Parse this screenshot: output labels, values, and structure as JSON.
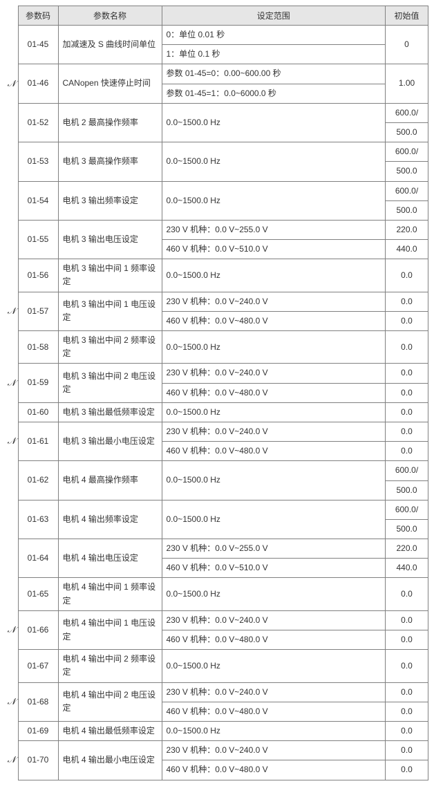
{
  "table": {
    "headers": {
      "code": "参数码",
      "name": "参数名称",
      "range": "设定范围",
      "init": "初始值"
    },
    "flag_glyph": "✔",
    "rows": [
      {
        "flag": false,
        "code": "01-45",
        "name": "加减速及 S 曲线时间单位",
        "range": "0：单位 0.01 秒\n1：单位 0.1 秒",
        "init": "0"
      },
      {
        "flag": true,
        "code": "01-46",
        "name": "CANopen 快速停止时间",
        "range": "参数 01-45=0：0.00~600.00 秒\n参数 01-45=1：0.0~6000.0 秒",
        "init": "1.00"
      },
      {
        "flag": false,
        "code": "01-52",
        "name": "电机 2 最高操作频率",
        "range": "0.0~1500.0 Hz",
        "init": "600.0/\n500.0"
      },
      {
        "flag": false,
        "code": "01-53",
        "name": "电机 3 最高操作频率",
        "range": "0.0~1500.0 Hz",
        "init": "600.0/\n500.0"
      },
      {
        "flag": false,
        "code": "01-54",
        "name": "电机 3 输出频率设定",
        "range": "0.0~1500.0 Hz",
        "init": "600.0/\n500.0"
      },
      {
        "flag": false,
        "code": "01-55",
        "name": "电机 3 输出电压设定",
        "range": "230 V 机种：0.0 V~255.0 V\n460 V 机种：0.0 V~510.0 V",
        "init": "220.0\n440.0"
      },
      {
        "flag": false,
        "code": "01-56",
        "name": "电机 3 输出中间 1 频率设定",
        "range": "0.0~1500.0 Hz",
        "init": "0.0"
      },
      {
        "flag": true,
        "code": "01-57",
        "name": "电机 3 输出中间 1 电压设定",
        "range": "230 V 机种：0.0 V~240.0 V\n460 V 机种：0.0 V~480.0 V",
        "init": "0.0\n0.0"
      },
      {
        "flag": false,
        "code": "01-58",
        "name": "电机 3 输出中间 2 频率设定",
        "range": "0.0~1500.0 Hz",
        "init": "0.0"
      },
      {
        "flag": true,
        "code": "01-59",
        "name": "电机 3 输出中间 2 电压设定",
        "range": "230 V 机种：0.0 V~240.0 V\n460 V 机种：0.0 V~480.0 V",
        "init": "0.0\n0.0"
      },
      {
        "flag": false,
        "code": "01-60",
        "name": "电机 3 输出最低频率设定",
        "range": "0.0~1500.0 Hz",
        "init": "0.0"
      },
      {
        "flag": true,
        "code": "01-61",
        "name": "电机 3 输出最小电压设定",
        "range": "230 V 机种：0.0 V~240.0 V\n460 V 机种：0.0 V~480.0 V",
        "init": "0.0\n0.0"
      },
      {
        "flag": false,
        "code": "01-62",
        "name": "电机 4 最高操作频率",
        "range": "0.0~1500.0 Hz",
        "init": "600.0/\n500.0"
      },
      {
        "flag": false,
        "code": "01-63",
        "name": "电机 4 输出频率设定",
        "range": "0.0~1500.0 Hz",
        "init": "600.0/\n500.0"
      },
      {
        "flag": false,
        "code": "01-64",
        "name": "电机 4 输出电压设定",
        "range": "230 V 机种：0.0 V~255.0 V\n460 V 机种：0.0 V~510.0 V",
        "init": "220.0\n440.0"
      },
      {
        "flag": false,
        "code": "01-65",
        "name": "电机 4 输出中间 1 频率设定",
        "range": "0.0~1500.0 Hz",
        "init": "0.0"
      },
      {
        "flag": true,
        "code": "01-66",
        "name": "电机 4 输出中间 1 电压设定",
        "range": "230 V 机种：0.0 V~240.0 V\n460 V 机种：0.0 V~480.0 V",
        "init": "0.0\n0.0"
      },
      {
        "flag": false,
        "code": "01-67",
        "name": "电机 4 输出中间 2 频率设定",
        "range": "0.0~1500.0 Hz",
        "init": "0.0"
      },
      {
        "flag": true,
        "code": "01-68",
        "name": "电机 4 输出中间 2 电压设定",
        "range": "230 V 机种：0.0 V~240.0 V\n460 V 机种：0.0 V~480.0 V",
        "init": "0.0\n0.0"
      },
      {
        "flag": false,
        "code": "01-69",
        "name": "电机 4 输出最低频率设定",
        "range": "0.0~1500.0 Hz",
        "init": "0.0"
      },
      {
        "flag": true,
        "code": "01-70",
        "name": "电机 4 输出最小电压设定",
        "range": "230 V 机种：0.0 V~240.0 V\n460 V 机种：0.0 V~480.0 V",
        "init": "0.0\n0.0"
      }
    ]
  }
}
